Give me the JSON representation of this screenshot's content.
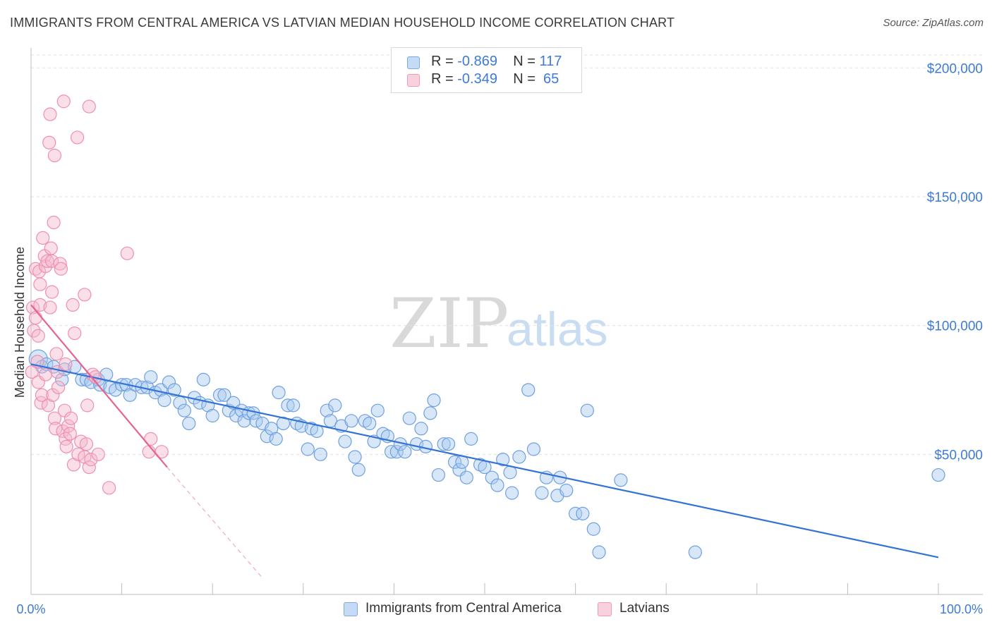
{
  "header": {
    "title": "IMMIGRANTS FROM CENTRAL AMERICA VS LATVIAN MEDIAN HOUSEHOLD INCOME CORRELATION CHART",
    "source": "Source: ZipAtlas.com"
  },
  "watermark": {
    "zip": "ZIP",
    "atlas": "atlas"
  },
  "legend": {
    "rows": [
      {
        "r_label": "R =",
        "r_value": "-0.869",
        "n_label": "N =",
        "n_value": "117",
        "color": "#a9c9f0"
      },
      {
        "r_label": "R =",
        "r_value": "-0.349",
        "n_label": "N =",
        "n_value": "65",
        "color": "#f5b8cc"
      }
    ]
  },
  "bottom_legend": {
    "items": [
      {
        "label": "Immigrants from Central America",
        "color": "#a9c9f0"
      },
      {
        "label": "Latvians",
        "color": "#f5b8cc"
      }
    ]
  },
  "chart_data": {
    "type": "scatter",
    "title": "IMMIGRANTS FROM CENTRAL AMERICA VS LATVIAN MEDIAN HOUSEHOLD INCOME CORRELATION CHART",
    "xlabel": "",
    "ylabel": "Median Household Income",
    "xlim": [
      0,
      100
    ],
    "ylim": [
      0,
      205000
    ],
    "x_tick_labels": [
      "0.0%",
      "100.0%"
    ],
    "y_ticks": [
      50000,
      100000,
      150000,
      200000
    ],
    "y_tick_labels": [
      "$50,000",
      "$100,000",
      "$150,000",
      "$200,000"
    ],
    "grid": "horizontal dashed",
    "legend_position": "top-center",
    "series": [
      {
        "name": "Immigrants from Central America",
        "color": "#6fa0e0",
        "fill": "#a9c9f0",
        "trend": {
          "x": [
            0,
            100
          ],
          "y": [
            85000,
            10000
          ]
        },
        "points": [
          [
            0.8,
            87000
          ],
          [
            1.2,
            84000
          ],
          [
            1.7,
            85000
          ],
          [
            2.5,
            84000
          ],
          [
            3.4,
            79000
          ],
          [
            3.7,
            83000
          ],
          [
            4.8,
            84000
          ],
          [
            5.6,
            79000
          ],
          [
            6.1,
            79000
          ],
          [
            6.6,
            78000
          ],
          [
            7.4,
            79000
          ],
          [
            7.6,
            77000
          ],
          [
            8.3,
            81000
          ],
          [
            8.7,
            76000
          ],
          [
            9.3,
            75000
          ],
          [
            10.0,
            77000
          ],
          [
            10.5,
            77000
          ],
          [
            10.9,
            73000
          ],
          [
            11.5,
            77000
          ],
          [
            12.2,
            76000
          ],
          [
            12.8,
            76000
          ],
          [
            13.2,
            80000
          ],
          [
            13.7,
            74000
          ],
          [
            14.3,
            75000
          ],
          [
            14.7,
            71000
          ],
          [
            15.2,
            78000
          ],
          [
            15.8,
            75000
          ],
          [
            16.4,
            70000
          ],
          [
            16.9,
            67000
          ],
          [
            17.4,
            62000
          ],
          [
            18.0,
            72000
          ],
          [
            18.6,
            70000
          ],
          [
            19.0,
            79000
          ],
          [
            19.5,
            69000
          ],
          [
            20.0,
            65000
          ],
          [
            20.8,
            73000
          ],
          [
            21.3,
            73000
          ],
          [
            21.8,
            67000
          ],
          [
            22.3,
            70000
          ],
          [
            22.6,
            65000
          ],
          [
            23.2,
            67000
          ],
          [
            23.5,
            63000
          ],
          [
            24.0,
            66000
          ],
          [
            24.5,
            66000
          ],
          [
            24.8,
            63000
          ],
          [
            25.5,
            62000
          ],
          [
            26.0,
            57000
          ],
          [
            26.5,
            60000
          ],
          [
            27.0,
            56000
          ],
          [
            27.3,
            74000
          ],
          [
            27.8,
            62000
          ],
          [
            28.3,
            69000
          ],
          [
            28.9,
            69000
          ],
          [
            29.3,
            62000
          ],
          [
            29.8,
            61000
          ],
          [
            30.5,
            52000
          ],
          [
            30.9,
            60000
          ],
          [
            31.5,
            59000
          ],
          [
            31.9,
            50000
          ],
          [
            32.6,
            67000
          ],
          [
            33.0,
            63000
          ],
          [
            33.5,
            69000
          ],
          [
            34.2,
            61000
          ],
          [
            34.6,
            55000
          ],
          [
            35.3,
            63000
          ],
          [
            35.7,
            49000
          ],
          [
            36.1,
            44000
          ],
          [
            36.8,
            63000
          ],
          [
            37.3,
            62000
          ],
          [
            37.8,
            55000
          ],
          [
            38.2,
            67000
          ],
          [
            38.8,
            58000
          ],
          [
            39.3,
            57000
          ],
          [
            39.7,
            51000
          ],
          [
            40.3,
            51000
          ],
          [
            40.7,
            54000
          ],
          [
            41.2,
            51000
          ],
          [
            41.7,
            64000
          ],
          [
            42.5,
            54000
          ],
          [
            43.0,
            60000
          ],
          [
            43.5,
            53000
          ],
          [
            44.0,
            66000
          ],
          [
            44.4,
            71000
          ],
          [
            44.9,
            42000
          ],
          [
            45.5,
            54000
          ],
          [
            46.0,
            54000
          ],
          [
            46.7,
            47000
          ],
          [
            47.2,
            44000
          ],
          [
            47.5,
            47000
          ],
          [
            48.0,
            41000
          ],
          [
            48.5,
            56000
          ],
          [
            49.5,
            46000
          ],
          [
            50.0,
            45000
          ],
          [
            50.8,
            41000
          ],
          [
            51.4,
            38000
          ],
          [
            52.0,
            48000
          ],
          [
            52.8,
            43000
          ],
          [
            53.0,
            35000
          ],
          [
            53.8,
            49000
          ],
          [
            54.8,
            75000
          ],
          [
            55.4,
            52000
          ],
          [
            56.3,
            35000
          ],
          [
            56.8,
            41000
          ],
          [
            58.0,
            34000
          ],
          [
            58.3,
            41000
          ],
          [
            59.0,
            36000
          ],
          [
            60.0,
            27000
          ],
          [
            60.8,
            27000
          ],
          [
            61.3,
            67000
          ],
          [
            62.0,
            21000
          ],
          [
            62.6,
            12000
          ],
          [
            65.0,
            40000
          ],
          [
            73.2,
            12000
          ],
          [
            100.0,
            42000
          ]
        ]
      },
      {
        "name": "Latvians",
        "color": "#ef8fb0",
        "fill": "#f5b8cc",
        "trend": {
          "x": [
            0,
            15
          ],
          "y": [
            108000,
            45000
          ]
        },
        "trend_extension": {
          "x": [
            15,
            25.5
          ],
          "y": [
            45000,
            2000
          ]
        },
        "points": [
          [
            0.1,
            82000
          ],
          [
            0.2,
            107000
          ],
          [
            0.3,
            98000
          ],
          [
            0.5,
            103000
          ],
          [
            0.5,
            122000
          ],
          [
            0.7,
            86000
          ],
          [
            0.8,
            78000
          ],
          [
            0.8,
            96000
          ],
          [
            0.9,
            121000
          ],
          [
            1.0,
            108000
          ],
          [
            1.0,
            116000
          ],
          [
            1.1,
            70000
          ],
          [
            1.2,
            73000
          ],
          [
            1.3,
            134000
          ],
          [
            1.5,
            127000
          ],
          [
            1.6,
            123000
          ],
          [
            1.6,
            81000
          ],
          [
            1.8,
            125000
          ],
          [
            1.9,
            69000
          ],
          [
            2.0,
            171000
          ],
          [
            2.1,
            182000
          ],
          [
            2.1,
            107000
          ],
          [
            2.2,
            130000
          ],
          [
            2.3,
            125000
          ],
          [
            2.3,
            113000
          ],
          [
            2.4,
            73000
          ],
          [
            2.5,
            140000
          ],
          [
            2.6,
            166000
          ],
          [
            2.6,
            64000
          ],
          [
            2.7,
            60000
          ],
          [
            2.8,
            89000
          ],
          [
            2.9,
            82000
          ],
          [
            3.0,
            76000
          ],
          [
            3.2,
            124000
          ],
          [
            3.3,
            122000
          ],
          [
            3.5,
            59000
          ],
          [
            3.6,
            187000
          ],
          [
            3.7,
            67000
          ],
          [
            3.8,
            85000
          ],
          [
            3.8,
            56000
          ],
          [
            3.9,
            53000
          ],
          [
            4.1,
            61000
          ],
          [
            4.3,
            58000
          ],
          [
            4.4,
            64000
          ],
          [
            4.6,
            108000
          ],
          [
            4.7,
            46000
          ],
          [
            4.8,
            97000
          ],
          [
            5.1,
            173000
          ],
          [
            5.2,
            50000
          ],
          [
            5.5,
            55000
          ],
          [
            5.9,
            112000
          ],
          [
            5.9,
            49000
          ],
          [
            6.1,
            54000
          ],
          [
            6.2,
            69000
          ],
          [
            6.4,
            45000
          ],
          [
            6.4,
            185000
          ],
          [
            6.6,
            48000
          ],
          [
            6.8,
            81000
          ],
          [
            7.1,
            80000
          ],
          [
            7.4,
            50000
          ],
          [
            8.6,
            37000
          ],
          [
            10.6,
            128000
          ],
          [
            13.0,
            51000
          ],
          [
            13.2,
            56000
          ],
          [
            14.4,
            51000
          ]
        ]
      }
    ]
  }
}
